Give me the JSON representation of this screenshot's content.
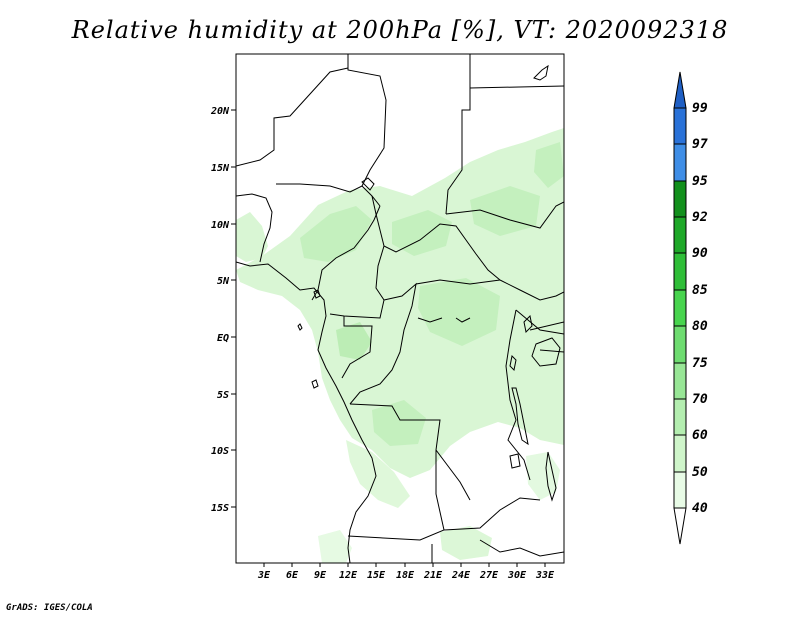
{
  "title": "Relative humidity at 200hPa [%], VT: 2020092318",
  "credit": "GrADS: IGES/COLA",
  "map": {
    "lat_ticks": [
      "20N",
      "15N",
      "10N",
      "5N",
      "EQ",
      "5S",
      "10S",
      "15S"
    ],
    "lon_ticks": [
      "3E",
      "6E",
      "9E",
      "12E",
      "15E",
      "18E",
      "21E",
      "24E",
      "27E",
      "30E",
      "33E"
    ]
  },
  "colorbar": {
    "labels": [
      "99",
      "97",
      "95",
      "92",
      "90",
      "85",
      "80",
      "75",
      "70",
      "60",
      "50",
      "40"
    ],
    "colors": {
      "above_99": "#1f5fc4",
      "97_99": "#2a72d8",
      "95_97": "#3f8ee6",
      "92_95": "#12901c",
      "90_92": "#1ea828",
      "85_90": "#2fbe38",
      "80_85": "#48d44e",
      "75_80": "#6edc70",
      "70_75": "#98e696",
      "60_70": "#b4eeb0",
      "50_60": "#cff5ca",
      "40_50": "#e8fbe6",
      "below_40": "#ffffff"
    }
  }
}
